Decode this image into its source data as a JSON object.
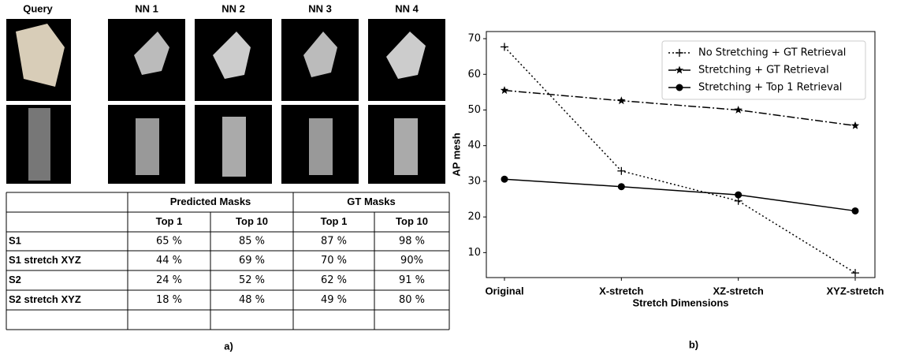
{
  "grid": {
    "headers": [
      "Query",
      "NN 1",
      "NN 2",
      "NN 3",
      "NN 4"
    ]
  },
  "table": {
    "group_headers": [
      "Predicted Masks",
      "GT Masks"
    ],
    "sub_headers": [
      "Top 1",
      "Top 10",
      "Top 1",
      "Top 10"
    ],
    "rows": [
      {
        "label": "S1",
        "cells": [
          "65 %",
          "85 %",
          "87 %",
          "98 %"
        ]
      },
      {
        "label": "S1 stretch XYZ",
        "cells": [
          "44 %",
          "69 %",
          "70 %",
          "90%"
        ]
      },
      {
        "label": "S2",
        "cells": [
          "24 %",
          "52 %",
          "62 %",
          "91 %"
        ]
      },
      {
        "label": "S2 stretch XYZ",
        "cells": [
          "18 %",
          "48 %",
          "49 %",
          "80 %"
        ]
      }
    ]
  },
  "caption_a": "a)",
  "caption_b": "b)",
  "chart_data": {
    "type": "line",
    "x_label": "Stretch Dimensions",
    "y_label": "AP mesh",
    "categories": [
      "Original",
      "X-stretch",
      "XZ-stretch",
      "XYZ-stretch"
    ],
    "ylim": [
      3,
      72
    ],
    "yticks": [
      10,
      20,
      30,
      40,
      50,
      60,
      70
    ],
    "legend": "upper right",
    "series": [
      {
        "name": "No Stretching + GT Retrieval",
        "color": "#000000",
        "linestyle": "dotted",
        "marker": "plus",
        "values": [
          67.7,
          32.9,
          24.5,
          4.3
        ]
      },
      {
        "name": "Stretching + GT Retrieval",
        "color": "#000000",
        "linestyle": "dashdot",
        "marker": "star",
        "values": [
          55.5,
          52.6,
          50.0,
          45.6
        ]
      },
      {
        "name": "Stretching + Top 1 Retrieval",
        "color": "#000000",
        "linestyle": "solid",
        "marker": "circle",
        "values": [
          30.6,
          28.5,
          26.2,
          21.7
        ]
      }
    ]
  }
}
